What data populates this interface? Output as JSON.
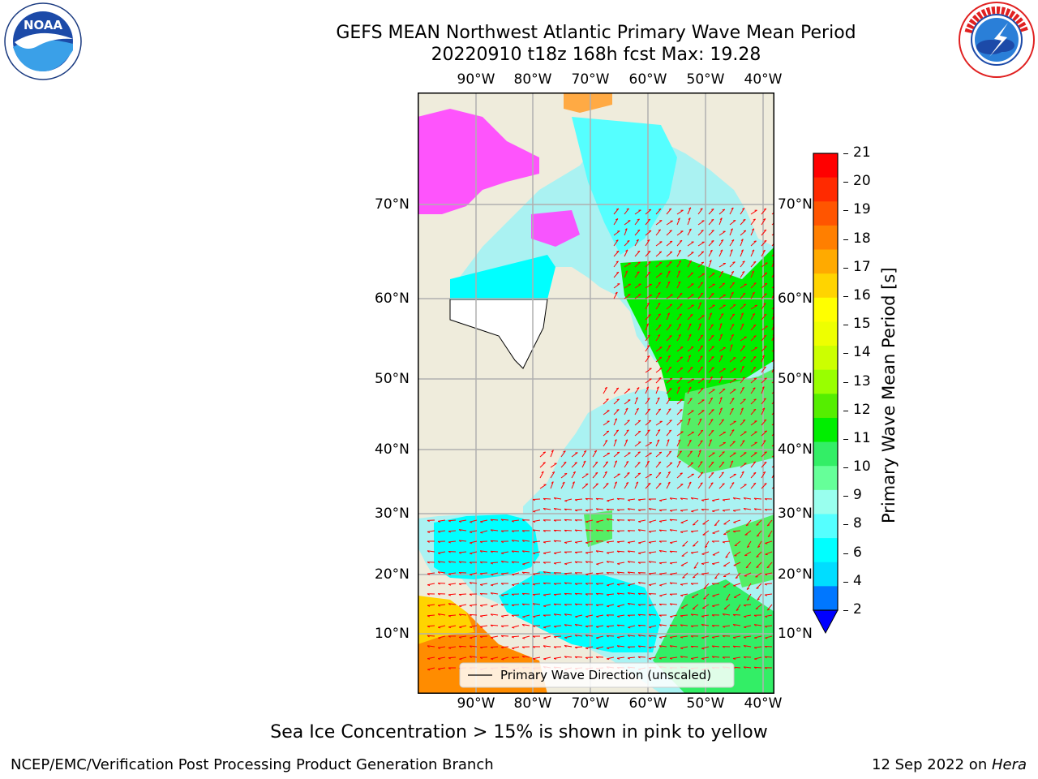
{
  "header": {
    "title_line1": "GEFS MEAN Northwest Atlantic Primary Wave Mean Period",
    "title_line2": "20220910 t18z 168h fcst   Max: 19.28"
  },
  "map": {
    "lon_labels": [
      "90°W",
      "80°W",
      "70°W",
      "60°W",
      "50°W",
      "40°W"
    ],
    "lat_labels": [
      "70°N",
      "60°N",
      "50°N",
      "40°N",
      "30°N",
      "20°N",
      "10°N"
    ],
    "legend_label": "Primary Wave Direction (unscaled)",
    "land_color": "#efecdc",
    "arrow_color": "#ff0000"
  },
  "colorbar": {
    "label": "Primary Wave Mean Period [s]",
    "ticks": [
      "21",
      "20",
      "19",
      "18",
      "17",
      "16",
      "15",
      "14",
      "13",
      "12",
      "11",
      "10",
      "9",
      "8",
      "6",
      "4",
      "2"
    ],
    "colors_top_to_bottom": [
      "#ff0000",
      "#ff2a00",
      "#ff5500",
      "#ff7f00",
      "#ffaa00",
      "#ffd400",
      "#ffff00",
      "#eeff00",
      "#ccff00",
      "#99ff00",
      "#55ee00",
      "#00ee00",
      "#33ee66",
      "#66ff99",
      "#99ffee",
      "#55ffff",
      "#00ffff",
      "#00ddff",
      "#0077ff"
    ],
    "under_color": "#0000ff"
  },
  "logos": {
    "noaa_text": "NOAA",
    "noaa_ring_text": "NATIONAL OCEANIC AND ATMOSPHERIC ADMINISTRATION · U.S. DEPARTMENT OF COMMERCE",
    "nws_ring_text": "NATIONAL WEATHER SERVICE"
  },
  "notes": {
    "sea_ice": "Sea Ice Concentration > 15% is shown in pink to yellow"
  },
  "footer": {
    "left": "NCEP/EMC/Verification Post Processing Product Generation Branch",
    "right_date": "12 Sep 2022 on ",
    "right_machine": "Hera"
  }
}
